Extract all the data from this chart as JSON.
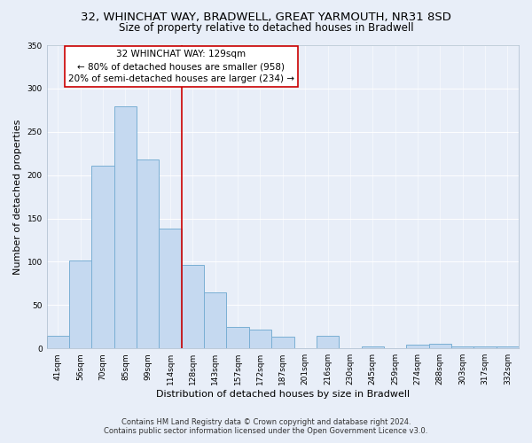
{
  "title": "32, WHINCHAT WAY, BRADWELL, GREAT YARMOUTH, NR31 8SD",
  "subtitle": "Size of property relative to detached houses in Bradwell",
  "xlabel": "Distribution of detached houses by size in Bradwell",
  "ylabel": "Number of detached properties",
  "bar_labels": [
    "41sqm",
    "56sqm",
    "70sqm",
    "85sqm",
    "99sqm",
    "114sqm",
    "128sqm",
    "143sqm",
    "157sqm",
    "172sqm",
    "187sqm",
    "201sqm",
    "216sqm",
    "230sqm",
    "245sqm",
    "259sqm",
    "274sqm",
    "288sqm",
    "303sqm",
    "317sqm",
    "332sqm"
  ],
  "bar_values": [
    15,
    101,
    211,
    279,
    218,
    138,
    96,
    65,
    25,
    22,
    13,
    0,
    15,
    0,
    2,
    0,
    4,
    5,
    2,
    2,
    2
  ],
  "bar_color": "#c5d9f0",
  "bar_edge_color": "#7aafd4",
  "vline_color": "#cc0000",
  "annotation_text_line1": "32 WHINCHAT WAY: 129sqm",
  "annotation_text_line2": "← 80% of detached houses are smaller (958)",
  "annotation_text_line3": "20% of semi-detached houses are larger (234) →",
  "box_edge_color": "#cc0000",
  "ylim": [
    0,
    350
  ],
  "yticks": [
    0,
    50,
    100,
    150,
    200,
    250,
    300,
    350
  ],
  "footer_line1": "Contains HM Land Registry data © Crown copyright and database right 2024.",
  "footer_line2": "Contains public sector information licensed under the Open Government Licence v3.0.",
  "bg_color": "#e8eef8",
  "plot_bg_color": "#e8eef8",
  "title_fontsize": 9.5,
  "subtitle_fontsize": 8.5,
  "axis_label_fontsize": 8,
  "tick_fontsize": 6.5,
  "annotation_fontsize": 7.5,
  "footer_fontsize": 6
}
